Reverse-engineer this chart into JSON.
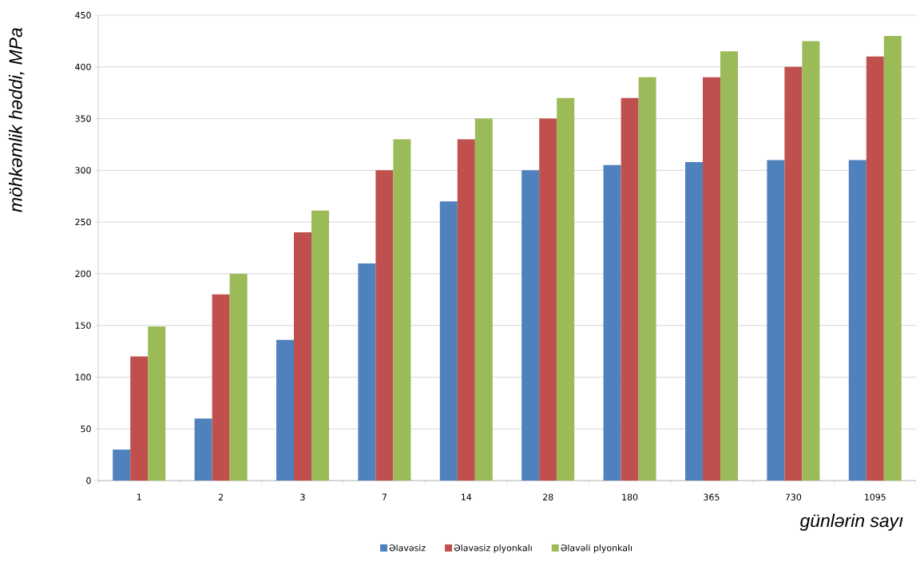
{
  "chart_data": {
    "type": "bar",
    "xlabel": "günlərin sayı",
    "ylabel": "möhkəmlik həddi, MPa",
    "categories": [
      "1",
      "2",
      "3",
      "7",
      "14",
      "28",
      "180",
      "365",
      "730",
      "1095"
    ],
    "series": [
      {
        "name": "Əlavəsiz",
        "color": "#4f81bd",
        "values": [
          30,
          60,
          136,
          210,
          270,
          300,
          305,
          308,
          310,
          310
        ]
      },
      {
        "name": "Əlavəsiz plyonkalı",
        "color": "#c0504d",
        "values": [
          120,
          180,
          240,
          300,
          330,
          350,
          370,
          390,
          400,
          410
        ]
      },
      {
        "name": "Əlavəli plyonkalı",
        "color": "#9bbb59",
        "values": [
          149,
          200,
          261,
          330,
          350,
          370,
          390,
          415,
          425,
          430
        ]
      }
    ],
    "ylim": [
      0,
      450
    ],
    "yticks": [
      0,
      50,
      100,
      150,
      200,
      250,
      300,
      350,
      400,
      450
    ],
    "grid": "y",
    "legend": "bottom"
  }
}
